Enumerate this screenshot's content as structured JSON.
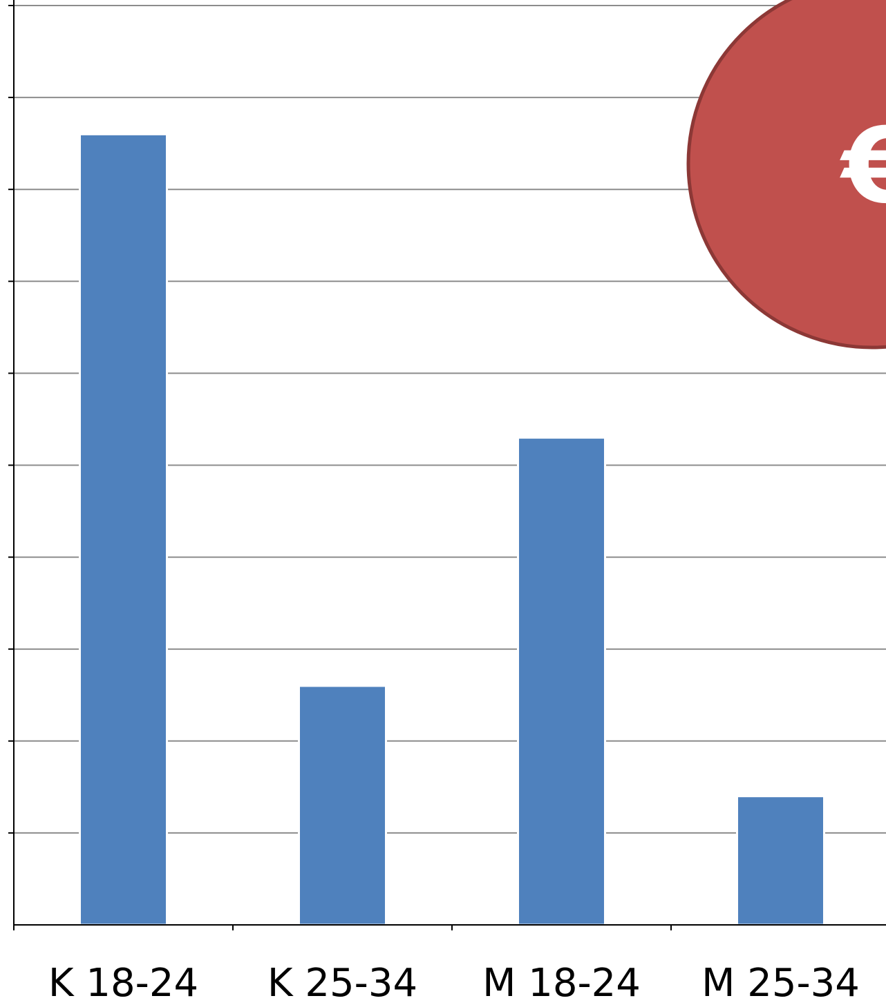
{
  "chart_data": {
    "type": "bar",
    "categories": [
      "K 18-24",
      "K 25-34",
      "M 18-24",
      "M 25-34"
    ],
    "values": [
      8.6,
      2.6,
      5.3,
      1.4
    ],
    "ylim": [
      0,
      10
    ],
    "y_tick_count": 10,
    "grid": true,
    "title": "",
    "xlabel": "",
    "ylabel": "",
    "bar_color": "#4F81BD"
  },
  "badge": {
    "symbol": "€",
    "icon": "euro-icon",
    "color": "#C0504D",
    "border_color": "#8C3836"
  }
}
